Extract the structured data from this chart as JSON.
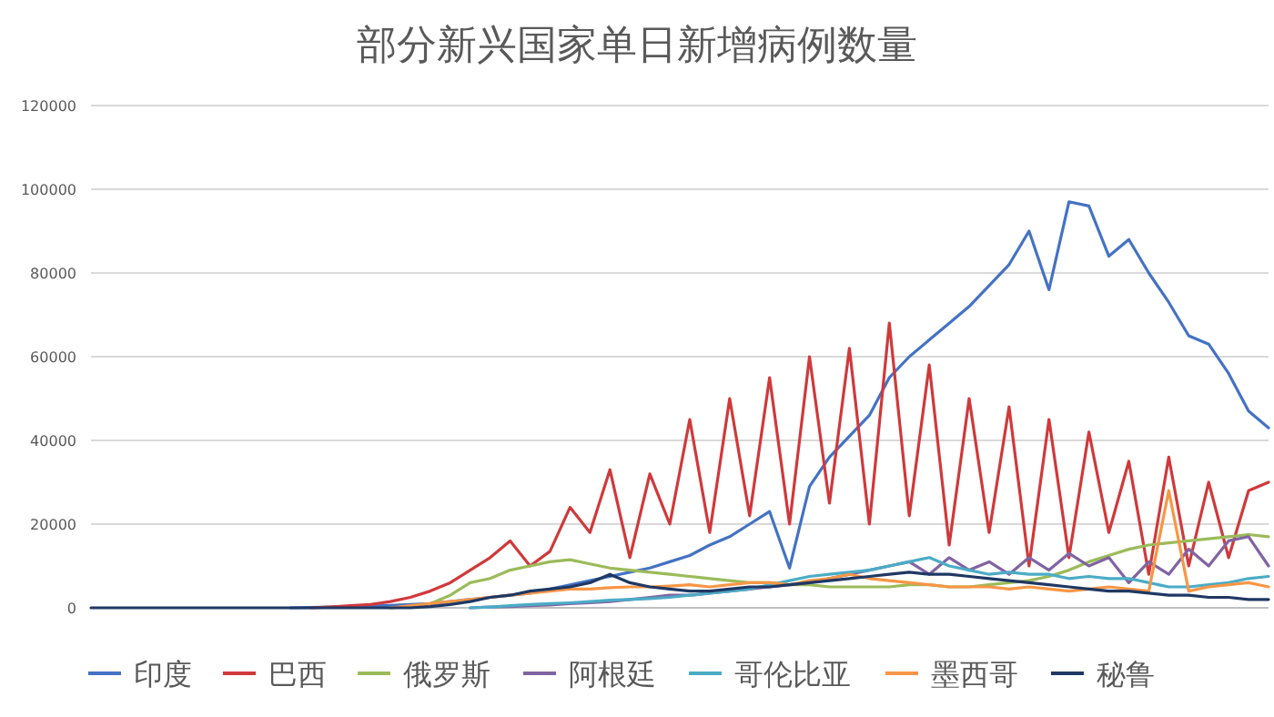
{
  "chart_data": {
    "type": "line",
    "title": "部分新兴国家单日新增病例数量",
    "categories": [
      null,
      null,
      null,
      null,
      null,
      null,
      null,
      null,
      null,
      null,
      null,
      null,
      null,
      null,
      null,
      null,
      null,
      null,
      null,
      null,
      null,
      null,
      null,
      null,
      null,
      null,
      null,
      null,
      null,
      null,
      null,
      null,
      null,
      null,
      null,
      null,
      null,
      null,
      null,
      null,
      null,
      null,
      null,
      null,
      null,
      null,
      null,
      null,
      null,
      null,
      null,
      null,
      null,
      null,
      null,
      null,
      null,
      null,
      null,
      null
    ],
    "series": [
      {
        "name": "印度",
        "color": "#4472c4",
        "values": [
          null,
          null,
          null,
          null,
          null,
          null,
          null,
          null,
          null,
          null,
          0,
          100,
          200,
          300,
          400,
          600,
          800,
          1000,
          1500,
          2000,
          2500,
          3000,
          3500,
          4500,
          5500,
          6500,
          7500,
          8500,
          9500,
          11000,
          12500,
          15000,
          17000,
          20000,
          23000,
          9500,
          29000,
          36000,
          41000,
          46000,
          55000,
          60000,
          64000,
          68000,
          72000,
          77000,
          82000,
          90000,
          76000,
          97000,
          96000,
          84000,
          88000,
          80000,
          73000,
          65000,
          63000,
          56000,
          47000,
          43000
        ]
      },
      {
        "name": "巴西",
        "color": "#d0393b",
        "values": [
          null,
          null,
          null,
          null,
          null,
          null,
          null,
          null,
          null,
          null,
          null,
          0,
          200,
          500,
          800,
          1500,
          2500,
          4000,
          6000,
          9000,
          12000,
          16000,
          10000,
          13500,
          24000,
          18000,
          33000,
          12000,
          32000,
          20000,
          45000,
          18000,
          50000,
          22000,
          55000,
          20000,
          60000,
          25000,
          62000,
          20000,
          68000,
          22000,
          58000,
          15000,
          50000,
          18000,
          48000,
          10000,
          45000,
          12000,
          42000,
          18000,
          35000,
          8000,
          36000,
          10000,
          30000,
          12000,
          28000,
          30000
        ]
      },
      {
        "name": "俄罗斯",
        "color": "#9bbb59",
        "values": [
          null,
          null,
          null,
          null,
          null,
          null,
          null,
          null,
          null,
          null,
          null,
          null,
          null,
          null,
          null,
          0,
          300,
          1000,
          3000,
          6000,
          7000,
          9000,
          10000,
          11000,
          11500,
          10500,
          9500,
          9000,
          8500,
          8000,
          7500,
          7000,
          6500,
          6000,
          6000,
          5500,
          5500,
          5000,
          5000,
          5000,
          5000,
          5500,
          5500,
          5000,
          5000,
          5500,
          6000,
          6500,
          7500,
          9000,
          11000,
          12500,
          14000,
          15000,
          15500,
          16000,
          16500,
          17000,
          17500,
          17000
        ]
      },
      {
        "name": "阿根廷",
        "color": "#8064a2",
        "values": [
          null,
          null,
          null,
          null,
          null,
          null,
          null,
          null,
          null,
          null,
          null,
          null,
          null,
          null,
          null,
          null,
          null,
          null,
          null,
          0,
          200,
          300,
          500,
          700,
          1000,
          1200,
          1500,
          2000,
          2500,
          3000,
          3000,
          3500,
          4000,
          4500,
          5000,
          5500,
          6000,
          7000,
          8000,
          9000,
          10000,
          11000,
          8000,
          12000,
          9000,
          11000,
          8000,
          12000,
          9000,
          13000,
          10000,
          12000,
          6000,
          11000,
          8000,
          14000,
          10000,
          16000,
          17000,
          10000
        ]
      },
      {
        "name": "哥伦比亚",
        "color": "#4bacc6",
        "values": [
          null,
          null,
          null,
          null,
          null,
          null,
          null,
          null,
          null,
          null,
          null,
          null,
          null,
          null,
          null,
          null,
          null,
          null,
          null,
          0,
          200,
          500,
          800,
          1000,
          1200,
          1500,
          1800,
          2000,
          2200,
          2500,
          3000,
          3500,
          4000,
          4500,
          5500,
          6500,
          7500,
          8000,
          8500,
          9000,
          10000,
          11000,
          12000,
          10000,
          9000,
          8000,
          8500,
          8000,
          8000,
          7000,
          7500,
          7000,
          7000,
          6000,
          5000,
          5000,
          5500,
          6000,
          7000,
          7500
        ]
      },
      {
        "name": "墨西哥",
        "color": "#f79646",
        "values": [
          null,
          null,
          null,
          null,
          null,
          null,
          null,
          null,
          null,
          null,
          null,
          null,
          null,
          null,
          null,
          0,
          500,
          1000,
          1500,
          2000,
          2500,
          3000,
          3500,
          4000,
          4500,
          4500,
          4800,
          5000,
          5000,
          5200,
          5500,
          5000,
          5500,
          6000,
          6000,
          5500,
          6500,
          7000,
          8000,
          7000,
          6500,
          6000,
          5500,
          5000,
          5000,
          5000,
          4500,
          5000,
          4500,
          4000,
          4500,
          5000,
          4500,
          4000,
          28000,
          4000,
          5000,
          5500,
          6000,
          5000
        ]
      },
      {
        "name": "秘鲁",
        "color": "#1f3864",
        "values": [
          0,
          0,
          0,
          0,
          0,
          0,
          0,
          0,
          0,
          0,
          0,
          0,
          0,
          0,
          0,
          0,
          0,
          300,
          800,
          1500,
          2500,
          3000,
          4000,
          4500,
          5000,
          6000,
          8000,
          6000,
          5000,
          4500,
          4000,
          4000,
          4500,
          5000,
          5000,
          5500,
          6000,
          6500,
          7000,
          7500,
          8000,
          8500,
          8000,
          8000,
          7500,
          7000,
          6500,
          6000,
          5500,
          5000,
          4500,
          4000,
          4000,
          3500,
          3000,
          3000,
          2500,
          2500,
          2000,
          2000
        ]
      }
    ],
    "ylim": [
      0,
      120000
    ],
    "yticks": [
      0,
      20000,
      40000,
      60000,
      80000,
      100000,
      120000
    ],
    "grid": "y",
    "legend": "bottom"
  }
}
